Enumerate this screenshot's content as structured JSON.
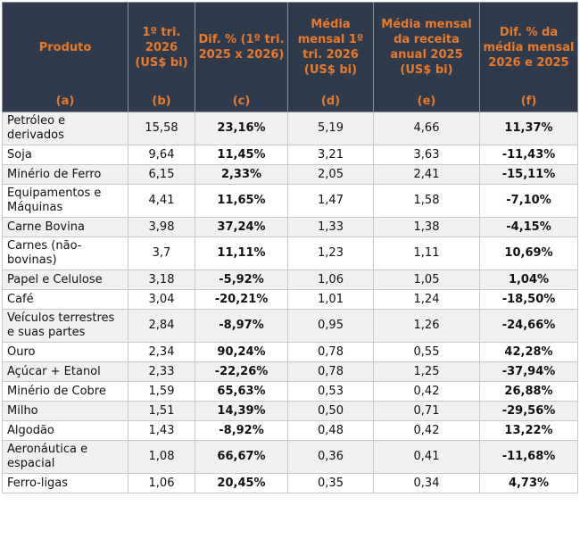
{
  "headers": [
    {
      "title": "Produto",
      "letter": "(a)"
    },
    {
      "title": "1º tri. 2026 (US$ bi)",
      "letter": "(b)"
    },
    {
      "title": "Dif. % (1º tri. 2025 x 2026)",
      "letter": "(c)"
    },
    {
      "title": "Média mensal 1º tri. 2026 (US$ bi)",
      "letter": "(d)"
    },
    {
      "title": "Média mensal da receita anual 2025 (US$ bi)",
      "letter": "(e)"
    },
    {
      "title": "Dif. % da média mensal 2026 e 2025",
      "letter": "(f)"
    }
  ],
  "rows": [
    {
      "produto": "Petróleo e derivados",
      "b": "15,58",
      "c": "23,16%",
      "d": "5,19",
      "e": "4,66",
      "f": "11,37%"
    },
    {
      "produto": "Soja",
      "b": "9,64",
      "c": "11,45%",
      "d": "3,21",
      "e": "3,63",
      "f": "-11,43%"
    },
    {
      "produto": "Minério de Ferro",
      "b": "6,15",
      "c": "2,33%",
      "d": "2,05",
      "e": "2,41",
      "f": "-15,11%"
    },
    {
      "produto": "Equipamentos e Máquinas",
      "b": "4,41",
      "c": "11,65%",
      "d": "1,47",
      "e": "1,58",
      "f": "-7,10%"
    },
    {
      "produto": "Carne Bovina",
      "b": "3,98",
      "c": "37,24%",
      "d": "1,33",
      "e": "1,38",
      "f": "-4,15%"
    },
    {
      "produto": "Carnes (não-bovinas)",
      "b": "3,7",
      "c": "11,11%",
      "d": "1,23",
      "e": "1,11",
      "f": "10,69%"
    },
    {
      "produto": "Papel e Celulose",
      "b": "3,18",
      "c": "-5,92%",
      "d": "1,06",
      "e": "1,05",
      "f": "1,04%"
    },
    {
      "produto": "Café",
      "b": "3,04",
      "c": "-20,21%",
      "d": "1,01",
      "e": "1,24",
      "f": "-18,50%"
    },
    {
      "produto": "Veículos terrestres e suas partes",
      "b": "2,84",
      "c": "-8,97%",
      "d": "0,95",
      "e": "1,26",
      "f": "-24,66%"
    },
    {
      "produto": "Ouro",
      "b": "2,34",
      "c": "90,24%",
      "d": "0,78",
      "e": "0,55",
      "f": "42,28%"
    },
    {
      "produto": "Açúcar + Etanol",
      "b": "2,33",
      "c": "-22,26%",
      "d": "0,78",
      "e": "1,25",
      "f": "-37,94%"
    },
    {
      "produto": "Minério de Cobre",
      "b": "1,59",
      "c": "65,63%",
      "d": "0,53",
      "e": "0,42",
      "f": "26,88%"
    },
    {
      "produto": "Milho",
      "b": "1,51",
      "c": "14,39%",
      "d": "0,50",
      "e": "0,71",
      "f": "-29,56%"
    },
    {
      "produto": "Algodão",
      "b": "1,43",
      "c": "-8,92%",
      "d": "0,48",
      "e": "0,42",
      "f": "13,22%"
    },
    {
      "produto": "Aeronáutica e espacial",
      "b": "1,08",
      "c": "66,67%",
      "d": "0,36",
      "e": "0,41",
      "f": "-11,68%"
    },
    {
      "produto": "Ferro-ligas",
      "b": "1,06",
      "c": "20,45%",
      "d": "0,35",
      "e": "0,34",
      "f": "4,73%"
    }
  ]
}
